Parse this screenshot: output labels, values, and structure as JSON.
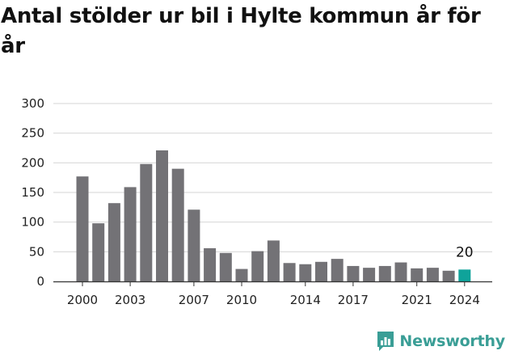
{
  "title": "Antal stölder ur bil i Hylte kommun år för år",
  "brand": {
    "name": "Newsworthy",
    "icon": "newsworthy-logo-icon"
  },
  "colors": {
    "bar": "#737276",
    "highlight": "#0fa39a",
    "grid": "#d6d6d6",
    "axis": "#333333",
    "brand": "#3a9e96"
  },
  "chart_data": {
    "type": "bar",
    "title": "Antal stölder ur bil i Hylte kommun år för år",
    "xlabel": "",
    "ylabel": "",
    "ylim": [
      0,
      300
    ],
    "yticks": [
      0,
      50,
      100,
      150,
      200,
      250,
      300
    ],
    "grid": true,
    "x": [
      2000,
      2001,
      2002,
      2003,
      2004,
      2005,
      2006,
      2007,
      2008,
      2009,
      2010,
      2011,
      2012,
      2013,
      2014,
      2015,
      2016,
      2017,
      2018,
      2019,
      2020,
      2021,
      2022,
      2023,
      2024
    ],
    "values": [
      177,
      98,
      132,
      159,
      198,
      221,
      190,
      121,
      56,
      48,
      21,
      51,
      69,
      31,
      29,
      33,
      38,
      26,
      23,
      26,
      32,
      22,
      23,
      18,
      20
    ],
    "xtick_labels": [
      "2000",
      "2003",
      "2007",
      "2010",
      "2014",
      "2017",
      "2021",
      "2024"
    ],
    "highlight": {
      "x": 2024,
      "label": "20"
    }
  }
}
